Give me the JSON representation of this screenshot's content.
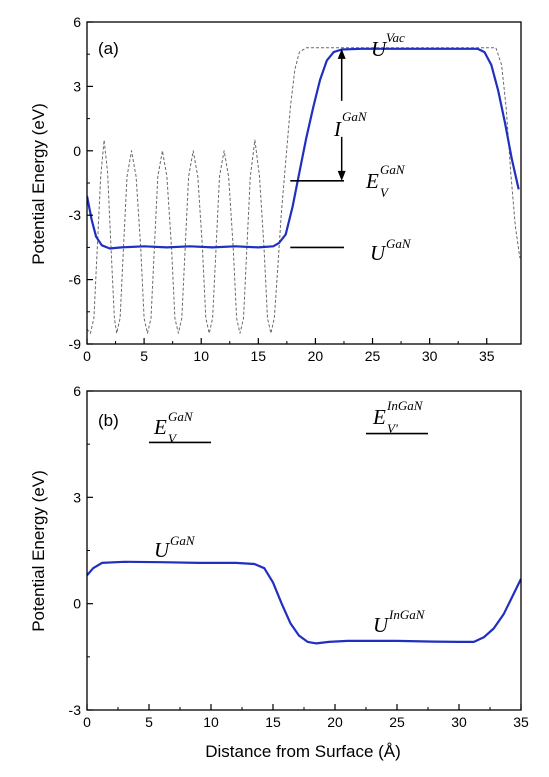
{
  "chart_data": [
    {
      "type": "line",
      "panel_label": "(a)",
      "xlabel": "",
      "ylabel": "Potential Energy (eV)",
      "xlim": [
        0,
        38
      ],
      "ylim": [
        -9,
        6
      ],
      "x_ticks": [
        0,
        5,
        10,
        15,
        20,
        25,
        30,
        35
      ],
      "y_ticks": [
        -9,
        -6,
        -3,
        0,
        3,
        6
      ],
      "series": [
        {
          "style": "solid",
          "color": "#1f2fbf",
          "points": [
            [
              0,
              -2.1
            ],
            [
              0.4,
              -3.2
            ],
            [
              0.8,
              -4.0
            ],
            [
              1.3,
              -4.4
            ],
            [
              2,
              -4.55
            ],
            [
              3,
              -4.5
            ],
            [
              5,
              -4.45
            ],
            [
              7,
              -4.5
            ],
            [
              9,
              -4.45
            ],
            [
              11,
              -4.5
            ],
            [
              13,
              -4.45
            ],
            [
              15,
              -4.5
            ],
            [
              16.3,
              -4.45
            ],
            [
              16.8,
              -4.3
            ],
            [
              17.4,
              -3.9
            ],
            [
              18,
              -2.6
            ],
            [
              18.6,
              -1.0
            ],
            [
              19.2,
              0.6
            ],
            [
              19.8,
              2.0
            ],
            [
              20.4,
              3.3
            ],
            [
              21,
              4.2
            ],
            [
              21.6,
              4.6
            ],
            [
              22.3,
              4.72
            ],
            [
              24,
              4.75
            ],
            [
              28,
              4.75
            ],
            [
              32,
              4.75
            ],
            [
              34.2,
              4.75
            ],
            [
              34.8,
              4.6
            ],
            [
              35.4,
              4.0
            ],
            [
              36,
              2.8
            ],
            [
              36.6,
              1.3
            ],
            [
              37.2,
              -0.4
            ],
            [
              37.8,
              -1.8
            ]
          ]
        },
        {
          "style": "dashed",
          "color": "#6a6a6a",
          "points": [
            [
              0,
              -8.3
            ],
            [
              0.3,
              -8.5
            ],
            [
              0.6,
              -7.8
            ],
            [
              0.9,
              -4.5
            ],
            [
              1.2,
              -1.2
            ],
            [
              1.5,
              0.5
            ],
            [
              1.8,
              -1.0
            ],
            [
              2.1,
              -4.5
            ],
            [
              2.4,
              -7.8
            ],
            [
              2.6,
              -8.5
            ],
            [
              2.9,
              -7.8
            ],
            [
              3.2,
              -4.5
            ],
            [
              3.5,
              -1.2
            ],
            [
              3.9,
              0.0
            ],
            [
              4.3,
              -1.2
            ],
            [
              4.7,
              -4.5
            ],
            [
              5,
              -7.8
            ],
            [
              5.3,
              -8.5
            ],
            [
              5.6,
              -7.8
            ],
            [
              5.9,
              -4.5
            ],
            [
              6.2,
              -1.2
            ],
            [
              6.6,
              0.0
            ],
            [
              7,
              -1.2
            ],
            [
              7.4,
              -4.5
            ],
            [
              7.7,
              -7.8
            ],
            [
              8,
              -8.5
            ],
            [
              8.3,
              -7.8
            ],
            [
              8.6,
              -4.5
            ],
            [
              8.9,
              -1.2
            ],
            [
              9.3,
              0.0
            ],
            [
              9.7,
              -1.2
            ],
            [
              10.1,
              -4.5
            ],
            [
              10.4,
              -7.8
            ],
            [
              10.7,
              -8.5
            ],
            [
              11,
              -7.8
            ],
            [
              11.3,
              -4.5
            ],
            [
              11.6,
              -1.2
            ],
            [
              12,
              0.0
            ],
            [
              12.4,
              -1.2
            ],
            [
              12.8,
              -4.5
            ],
            [
              13.1,
              -7.8
            ],
            [
              13.4,
              -8.5
            ],
            [
              13.7,
              -7.8
            ],
            [
              14,
              -4.5
            ],
            [
              14.3,
              -1.2
            ],
            [
              14.7,
              0.5
            ],
            [
              15.1,
              -1.2
            ],
            [
              15.5,
              -4.5
            ],
            [
              15.8,
              -7.8
            ],
            [
              16.1,
              -8.5
            ],
            [
              16.4,
              -7.8
            ],
            [
              16.7,
              -5.5
            ],
            [
              17,
              -3.0
            ],
            [
              17.4,
              -0.5
            ],
            [
              17.8,
              2.0
            ],
            [
              18.2,
              3.8
            ],
            [
              18.6,
              4.6
            ],
            [
              19.2,
              4.8
            ],
            [
              22,
              4.8
            ],
            [
              30,
              4.8
            ],
            [
              35,
              4.8
            ],
            [
              35.8,
              4.8
            ],
            [
              36.3,
              4.0
            ],
            [
              36.7,
              2.0
            ],
            [
              37.1,
              -1.0
            ],
            [
              37.5,
              -3.5
            ],
            [
              37.9,
              -5.0
            ]
          ]
        }
      ],
      "annotations": [
        {
          "base": "U",
          "sup": "Vac",
          "sub": ""
        },
        {
          "base": "I",
          "sup": "GaN",
          "sub": ""
        },
        {
          "base": "E",
          "sup": "GaN",
          "sub": "V"
        },
        {
          "base": "U",
          "sup": "GaN",
          "sub": ""
        }
      ],
      "level_markers": [
        {
          "label_index": 2,
          "y": -1.4,
          "x0": 17.8,
          "x1": 22.5
        },
        {
          "label_index": 3,
          "y": -4.5,
          "x0": 17.8,
          "x1": 22.5
        }
      ],
      "arrow": {
        "x": 22.3,
        "y_top": 4.75,
        "y_bottom": -1.4
      }
    },
    {
      "type": "line",
      "panel_label": "(b)",
      "xlabel": "Distance from Surface (Å)",
      "ylabel": "Potential Energy (eV)",
      "xlim": [
        0,
        35
      ],
      "ylim": [
        -3,
        6
      ],
      "x_ticks": [
        0,
        5,
        10,
        15,
        20,
        25,
        30,
        35
      ],
      "y_ticks": [
        -3,
        0,
        3,
        6
      ],
      "series": [
        {
          "style": "solid",
          "color": "#1f2fbf",
          "points": [
            [
              0,
              0.8
            ],
            [
              0.5,
              1.0
            ],
            [
              1.2,
              1.15
            ],
            [
              3,
              1.18
            ],
            [
              6,
              1.17
            ],
            [
              9,
              1.15
            ],
            [
              12,
              1.15
            ],
            [
              13.5,
              1.12
            ],
            [
              14.3,
              1.0
            ],
            [
              15,
              0.6
            ],
            [
              15.7,
              0.0
            ],
            [
              16.4,
              -0.55
            ],
            [
              17.1,
              -0.9
            ],
            [
              17.8,
              -1.08
            ],
            [
              18.5,
              -1.12
            ],
            [
              19.5,
              -1.08
            ],
            [
              21,
              -1.05
            ],
            [
              25,
              -1.05
            ],
            [
              28,
              -1.07
            ],
            [
              30,
              -1.08
            ],
            [
              31.2,
              -1.08
            ],
            [
              32,
              -0.95
            ],
            [
              32.8,
              -0.7
            ],
            [
              33.6,
              -0.3
            ],
            [
              34.3,
              0.2
            ],
            [
              35,
              0.7
            ]
          ]
        }
      ],
      "annotations": [
        {
          "base": "E",
          "sup": "GaN",
          "sub": "V"
        },
        {
          "base": "E",
          "sup": "InGaN",
          "sub": "V'"
        },
        {
          "base": "U",
          "sup": "GaN",
          "sub": ""
        },
        {
          "base": "U",
          "sup": "InGaN",
          "sub": ""
        }
      ],
      "level_markers": [
        {
          "label_index": 0,
          "y": 4.55,
          "x0": 5,
          "x1": 10
        },
        {
          "label_index": 1,
          "y": 4.8,
          "x0": 22.5,
          "x1": 27.5
        }
      ]
    }
  ]
}
